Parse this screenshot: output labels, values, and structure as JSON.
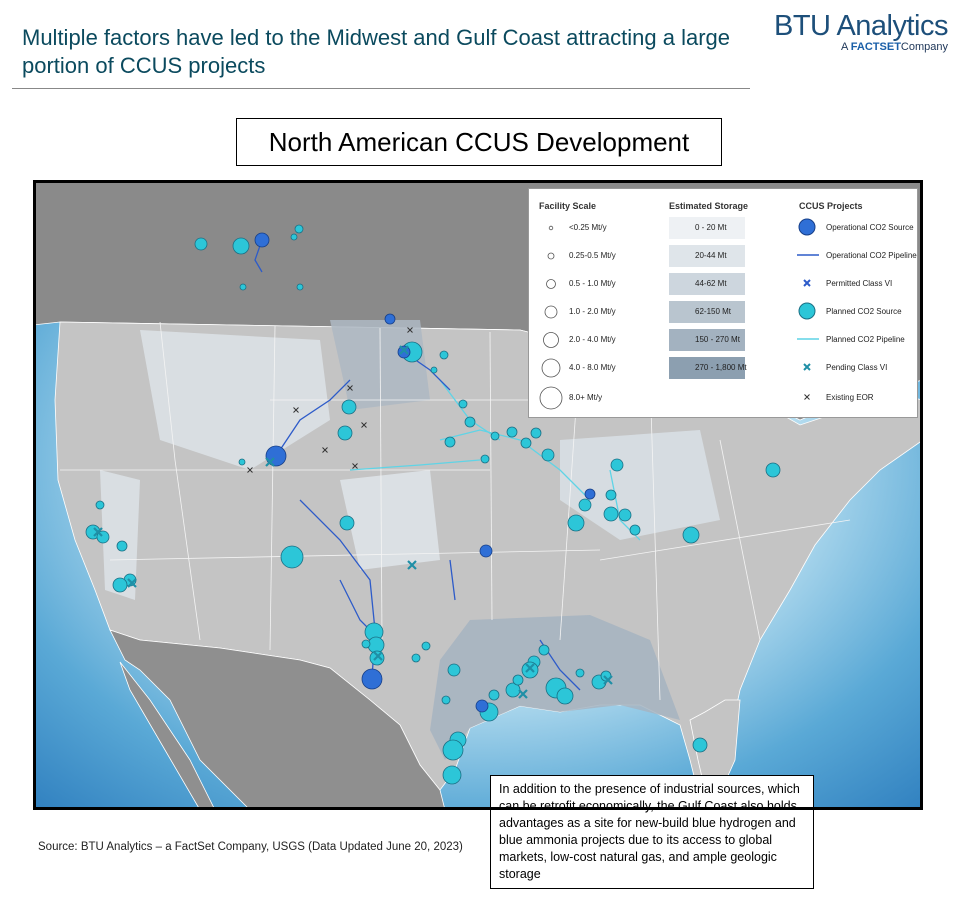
{
  "header": {
    "title": "Multiple factors have led to the Midwest and Gulf Coast attracting a large portion of CCUS projects",
    "logo": {
      "name": "BTU Analytics",
      "prefix": "A",
      "brand": "FACTSET",
      "suffix": "Company"
    }
  },
  "map": {
    "title": "North American CCUS Development",
    "legend": {
      "facility_scale": {
        "title": "Facility Scale",
        "items": [
          "<0.25 Mt/y",
          "0.25-0.5 Mt/y",
          "0.5 - 1.0 Mt/y",
          "1.0 - 2.0 Mt/y",
          "2.0 - 4.0 Mt/y",
          "4.0 - 8.0 Mt/y",
          "8.0+ Mt/y"
        ]
      },
      "estimated_storage": {
        "title": "Estimated Storage",
        "items": [
          "0 - 20 Mt",
          "20-44 Mt",
          "44-62 Mt",
          "62-150 Mt",
          "150 - 270 Mt",
          "270 - 1,800 Mt"
        ]
      },
      "ccus_projects": {
        "title": "CCUS Projects",
        "items": [
          "Operational CO2 Source",
          "Operational CO2 Pipeline",
          "Permitted Class VI",
          "Planned CO2 Source",
          "Planned CO2 Pipeline",
          "Pending Class VI",
          "Existing EOR"
        ]
      }
    }
  },
  "callout": "In addition to the presence of industrial sources, which can be retrofit economically, the Gulf Coast also holds advantages as a site for new-build blue hydrogen and blue ammonia projects due to its access to global markets, low-cost natural gas, and ample geologic storage",
  "source": "Source: BTU Analytics – a FactSet Company, USGS (Data Updated June 20, 2023)"
}
